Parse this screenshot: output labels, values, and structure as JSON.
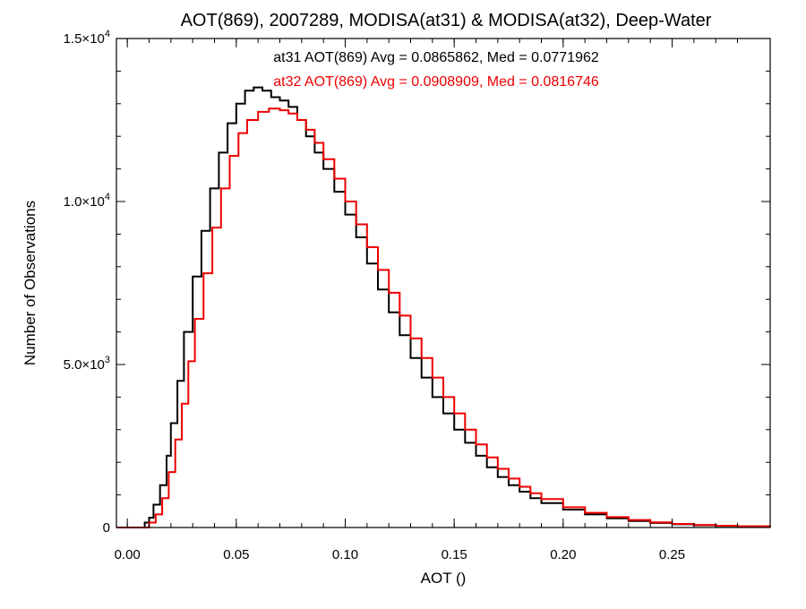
{
  "chart_data": {
    "type": "line",
    "title": "AOT(869), 2007289, MODISA(at31) & MODISA(at32), Deep-Water",
    "xlabel": "AOT ()",
    "ylabel": "Number of Observations",
    "xlim": [
      -0.005,
      0.295
    ],
    "ylim": [
      0,
      15000
    ],
    "x_ticks": [
      0.0,
      0.05,
      0.1,
      0.15,
      0.2,
      0.25
    ],
    "x_tick_labels": [
      "0.00",
      "0.05",
      "0.10",
      "0.15",
      "0.20",
      "0.25"
    ],
    "y_ticks": [
      0,
      5000,
      10000,
      15000
    ],
    "y_tick_labels": [
      {
        "mantissa": "0",
        "exp": ""
      },
      {
        "mantissa": "5.0×10",
        "exp": "3"
      },
      {
        "mantissa": "1.0×10",
        "exp": "4"
      },
      {
        "mantissa": "1.5×10",
        "exp": "4"
      }
    ],
    "grid": false,
    "step": true,
    "annotations": [
      {
        "text": "at31 AOT(869) Avg = 0.0865862, Med = 0.0771962",
        "color": "#000000"
      },
      {
        "text": "at32 AOT(869) Avg = 0.0908909, Med = 0.0816746",
        "color": "#ee0000"
      }
    ],
    "series": [
      {
        "color": "#000000",
        "points": [
          [
            -0.005,
            0
          ],
          [
            0.005,
            0
          ],
          [
            0.008,
            150
          ],
          [
            0.01,
            300
          ],
          [
            0.012,
            700
          ],
          [
            0.015,
            1300
          ],
          [
            0.018,
            2200
          ],
          [
            0.02,
            3200
          ],
          [
            0.023,
            4500
          ],
          [
            0.026,
            6000
          ],
          [
            0.03,
            7700
          ],
          [
            0.034,
            9100
          ],
          [
            0.038,
            10400
          ],
          [
            0.042,
            11500
          ],
          [
            0.046,
            12400
          ],
          [
            0.05,
            13000
          ],
          [
            0.054,
            13400
          ],
          [
            0.058,
            13500
          ],
          [
            0.062,
            13400
          ],
          [
            0.066,
            13200
          ],
          [
            0.07,
            13100
          ],
          [
            0.074,
            12900
          ],
          [
            0.078,
            12500
          ],
          [
            0.082,
            12000
          ],
          [
            0.086,
            11500
          ],
          [
            0.09,
            11000
          ],
          [
            0.095,
            10300
          ],
          [
            0.1,
            9600
          ],
          [
            0.105,
            8900
          ],
          [
            0.11,
            8100
          ],
          [
            0.115,
            7300
          ],
          [
            0.12,
            6600
          ],
          [
            0.125,
            5900
          ],
          [
            0.13,
            5200
          ],
          [
            0.135,
            4600
          ],
          [
            0.14,
            4000
          ],
          [
            0.145,
            3500
          ],
          [
            0.15,
            3000
          ],
          [
            0.155,
            2600
          ],
          [
            0.16,
            2200
          ],
          [
            0.165,
            1850
          ],
          [
            0.17,
            1550
          ],
          [
            0.175,
            1300
          ],
          [
            0.18,
            1100
          ],
          [
            0.185,
            900
          ],
          [
            0.19,
            750
          ],
          [
            0.2,
            550
          ],
          [
            0.21,
            400
          ],
          [
            0.22,
            280
          ],
          [
            0.23,
            200
          ],
          [
            0.24,
            140
          ],
          [
            0.25,
            100
          ],
          [
            0.26,
            70
          ],
          [
            0.27,
            50
          ],
          [
            0.28,
            35
          ],
          [
            0.295,
            20
          ]
        ]
      },
      {
        "color": "#ee0000",
        "points": [
          [
            -0.005,
            0
          ],
          [
            0.006,
            0
          ],
          [
            0.01,
            150
          ],
          [
            0.013,
            400
          ],
          [
            0.016,
            900
          ],
          [
            0.019,
            1700
          ],
          [
            0.022,
            2700
          ],
          [
            0.025,
            3800
          ],
          [
            0.028,
            5100
          ],
          [
            0.031,
            6400
          ],
          [
            0.035,
            7800
          ],
          [
            0.039,
            9200
          ],
          [
            0.043,
            10400
          ],
          [
            0.047,
            11400
          ],
          [
            0.051,
            12100
          ],
          [
            0.055,
            12500
          ],
          [
            0.06,
            12750
          ],
          [
            0.065,
            12850
          ],
          [
            0.07,
            12800
          ],
          [
            0.074,
            12700
          ],
          [
            0.078,
            12500
          ],
          [
            0.082,
            12200
          ],
          [
            0.086,
            11800
          ],
          [
            0.09,
            11300
          ],
          [
            0.095,
            10700
          ],
          [
            0.1,
            10000
          ],
          [
            0.105,
            9300
          ],
          [
            0.11,
            8600
          ],
          [
            0.115,
            7900
          ],
          [
            0.12,
            7200
          ],
          [
            0.125,
            6500
          ],
          [
            0.13,
            5800
          ],
          [
            0.135,
            5200
          ],
          [
            0.14,
            4600
          ],
          [
            0.145,
            4000
          ],
          [
            0.15,
            3500
          ],
          [
            0.155,
            3000
          ],
          [
            0.16,
            2550
          ],
          [
            0.165,
            2150
          ],
          [
            0.17,
            1800
          ],
          [
            0.175,
            1500
          ],
          [
            0.18,
            1250
          ],
          [
            0.185,
            1050
          ],
          [
            0.19,
            870
          ],
          [
            0.2,
            620
          ],
          [
            0.21,
            450
          ],
          [
            0.22,
            320
          ],
          [
            0.23,
            230
          ],
          [
            0.24,
            160
          ],
          [
            0.25,
            110
          ],
          [
            0.26,
            80
          ],
          [
            0.27,
            55
          ],
          [
            0.28,
            38
          ],
          [
            0.295,
            22
          ]
        ]
      }
    ]
  }
}
